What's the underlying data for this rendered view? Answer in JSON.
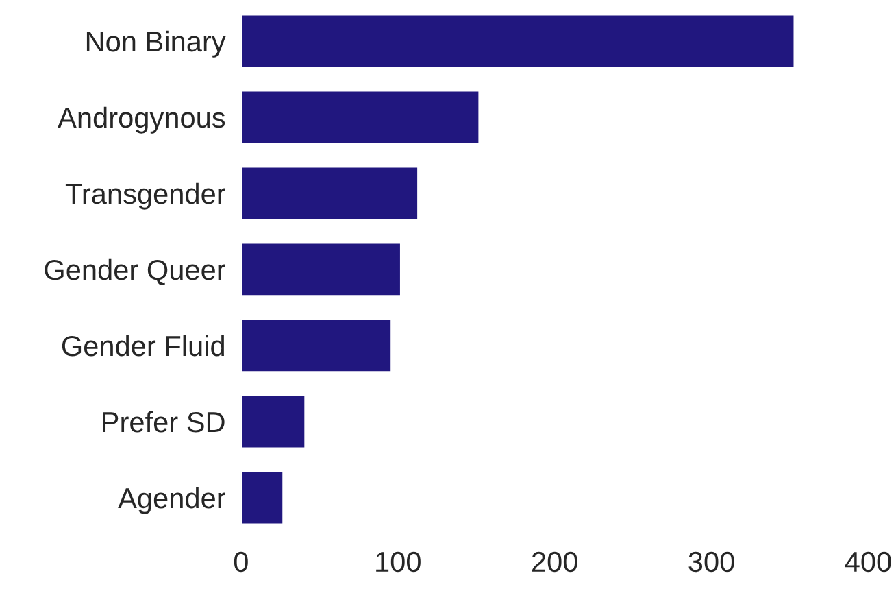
{
  "chart_data": {
    "type": "bar",
    "orientation": "horizontal",
    "categories": [
      "Non Binary",
      "Androgynous",
      "Transgender",
      "Gender Queer",
      "Gender Fluid",
      "Prefer SD",
      "Agender"
    ],
    "values": [
      353,
      152,
      113,
      102,
      96,
      41,
      27
    ],
    "color": "#21177f",
    "xlim": [
      0,
      400
    ],
    "xticks": [
      0,
      100,
      200,
      300,
      400
    ],
    "grid": false
  }
}
